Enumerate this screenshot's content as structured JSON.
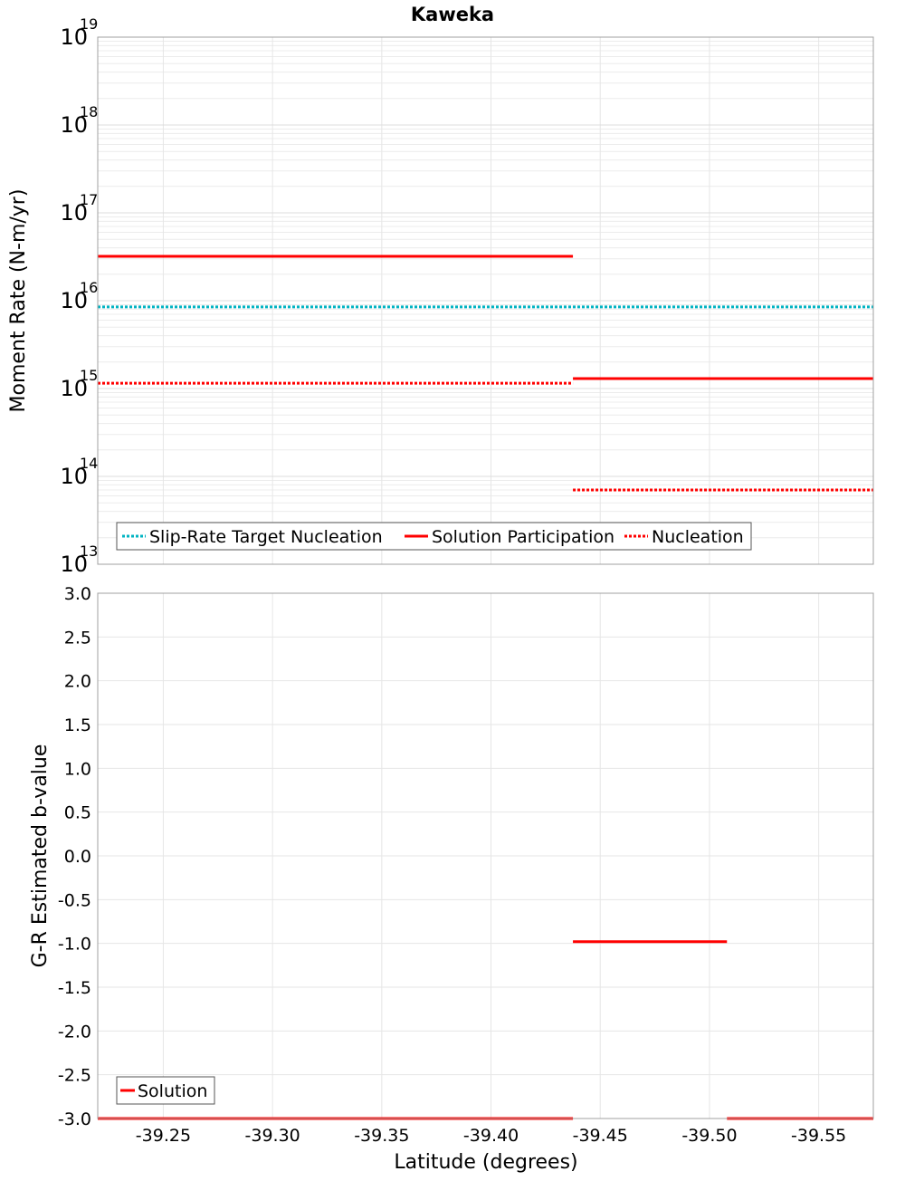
{
  "title": "Kaweka",
  "chart_data": [
    {
      "type": "line",
      "title": "Kaweka",
      "ylabel": "Moment Rate (N-m/yr)",
      "xlabel": "",
      "yscale": "log",
      "ylim_exponents": [
        13,
        19
      ],
      "ytick_base": "10",
      "ytick_exponents": [
        "13",
        "14",
        "15",
        "16",
        "17",
        "18",
        "19"
      ],
      "xlim": [
        -39.22,
        -39.575
      ],
      "xaxis_reversed": true,
      "grid": true,
      "legend_position": "bottom-left",
      "series": [
        {
          "name": "Slip-Rate Target Nucleation",
          "color": "#00b3c2",
          "style": "dotted",
          "segments": [
            [
              -39.22,
              -39.575,
              8500000000000000.0
            ]
          ]
        },
        {
          "name": "Solution Participation",
          "color": "#ff0000",
          "style": "solid",
          "segments": [
            [
              -39.22,
              -39.4375,
              3.2e+16
            ],
            [
              -39.4375,
              -39.575,
              1300000000000000.0
            ]
          ]
        },
        {
          "name": "Nucleation",
          "color": "#ff0000",
          "style": "dotted",
          "segments": [
            [
              -39.22,
              -39.4375,
              1150000000000000.0
            ],
            [
              -39.4375,
              -39.575,
              70000000000000.0
            ]
          ]
        }
      ]
    },
    {
      "type": "line",
      "title": "",
      "ylabel": "G-R Estimated b-value",
      "xlabel": "Latitude (degrees)",
      "ylim": [
        -3.0,
        3.0
      ],
      "yticks": [
        "-3.0",
        "-2.5",
        "-2.0",
        "-1.5",
        "-1.0",
        "-0.5",
        "0.0",
        "0.5",
        "1.0",
        "1.5",
        "2.0",
        "2.5",
        "3.0"
      ],
      "xlim": [
        -39.22,
        -39.575
      ],
      "xticks": [
        "-39.25",
        "-39.30",
        "-39.35",
        "-39.40",
        "-39.45",
        "-39.50",
        "-39.55"
      ],
      "xaxis_reversed": true,
      "grid": true,
      "legend_position": "bottom-left",
      "series": [
        {
          "name": "Solution",
          "color": "#ff0000",
          "style": "solid",
          "segments": [
            [
              -39.22,
              -39.4375,
              -3.0
            ],
            [
              -39.4375,
              -39.508,
              -0.98
            ],
            [
              -39.508,
              -39.575,
              -3.0
            ]
          ]
        }
      ]
    }
  ]
}
